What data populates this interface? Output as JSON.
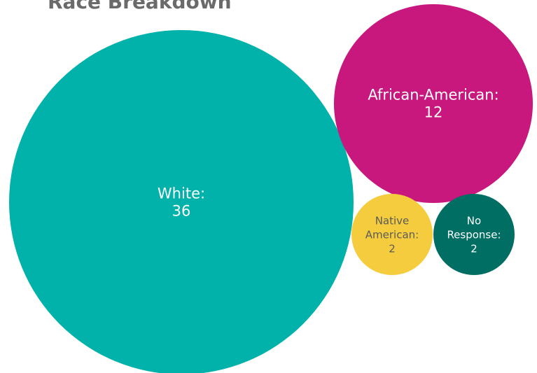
{
  "chart_data": {
    "type": "bubble",
    "title": "Race Breakdown",
    "series": [
      {
        "name": "White",
        "label": "White:",
        "value": 36,
        "value_label": "36",
        "color": "#00b2a9",
        "text_color": "#ffffff"
      },
      {
        "name": "African-American",
        "label": "African-American:",
        "value": 12,
        "value_label": "12",
        "color": "#c8187d",
        "text_color": "#ffffff"
      },
      {
        "name": "Native American",
        "label": "Native American:",
        "value": 2,
        "value_label": "2",
        "color": "#f5cc3d",
        "text_color": "#5a5a5a"
      },
      {
        "name": "No Response",
        "label": "No Response:",
        "value": 2,
        "value_label": "2",
        "color": "#006e62",
        "text_color": "#ffffff"
      }
    ]
  }
}
